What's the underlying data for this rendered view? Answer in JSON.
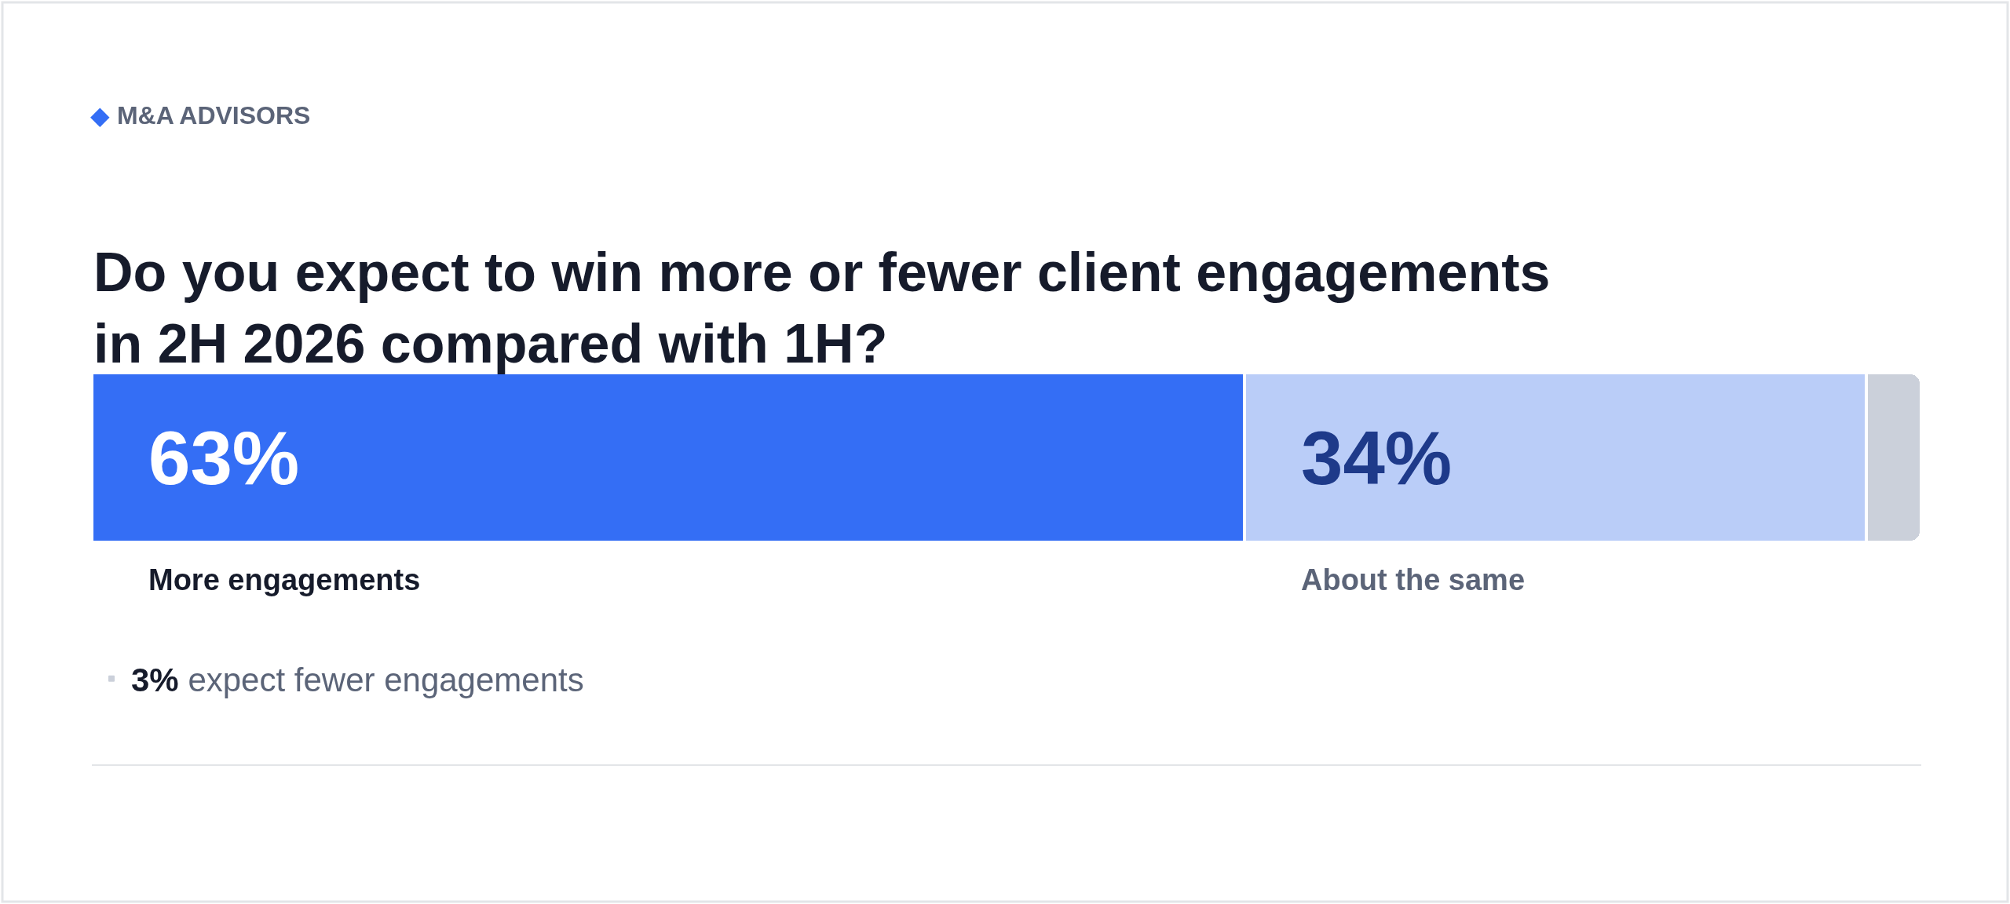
{
  "chart_data": {
    "type": "bar",
    "orientation": "horizontal",
    "stacked": true,
    "subtitle": "◆ M&A ADVISORS",
    "title": "Do you expect to win more or fewer client engagements\nin 2H 2026 compared with 1H?",
    "categories": [
      null
    ],
    "series": [
      {
        "name": "More engagements",
        "color": "#346ef5",
        "values": [
          63
        ],
        "value_labels": [
          "63%"
        ]
      },
      {
        "name": "About the same",
        "color": "#bacdf8",
        "values": [
          34
        ],
        "value_labels": [
          "34%"
        ]
      },
      {
        "name": "3% expect fewer engagements",
        "color": "#cbd0da",
        "values": [
          3
        ]
      }
    ],
    "legend": "bottom left"
  }
}
